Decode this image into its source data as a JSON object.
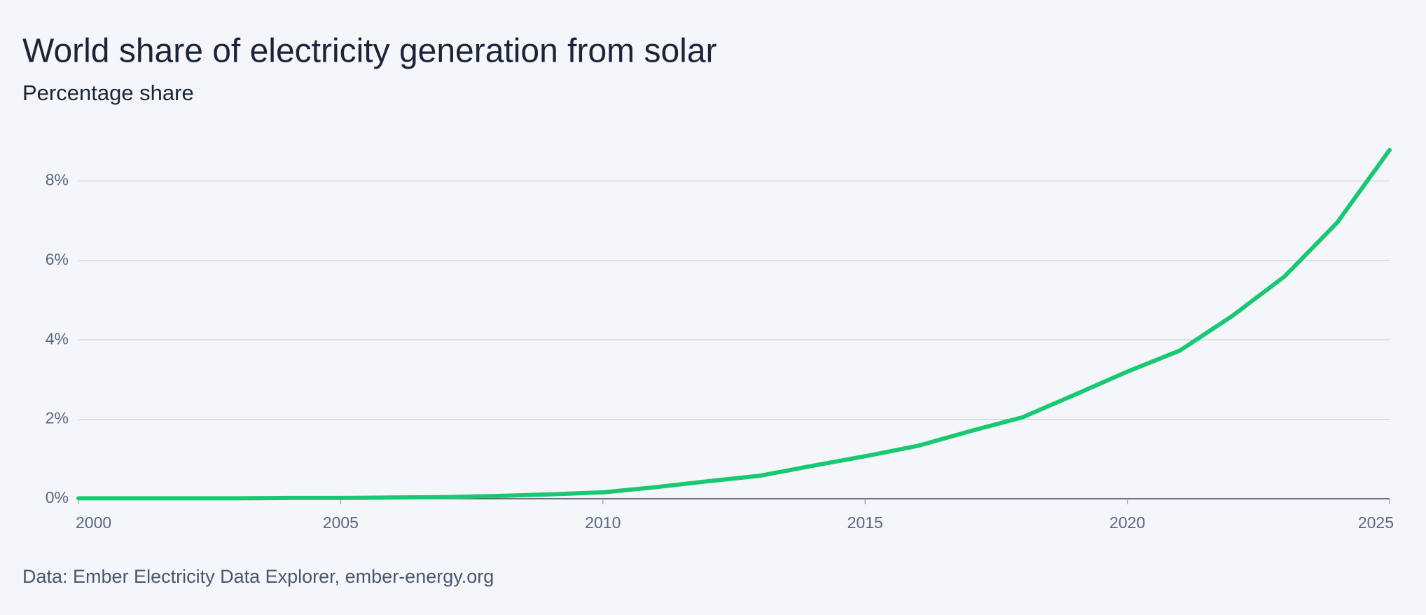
{
  "chart_data": {
    "type": "line",
    "title": "World share of electricity generation from solar",
    "subtitle": "Percentage share",
    "source": "Data: Ember Electricity Data Explorer, ember-energy.org",
    "x": [
      2000,
      2001,
      2002,
      2003,
      2004,
      2005,
      2006,
      2007,
      2008,
      2009,
      2010,
      2011,
      2012,
      2013,
      2014,
      2015,
      2016,
      2017,
      2018,
      2019,
      2020,
      2021,
      2022,
      2023,
      2024,
      2025
    ],
    "series": [
      {
        "color": "#19c872",
        "values": [
          0.01,
          0.01,
          0.01,
          0.01,
          0.02,
          0.02,
          0.03,
          0.04,
          0.07,
          0.11,
          0.16,
          0.29,
          0.44,
          0.58,
          0.83,
          1.07,
          1.33,
          1.7,
          2.05,
          2.62,
          3.2,
          3.73,
          4.6,
          5.6,
          6.95,
          8.78
        ]
      }
    ],
    "xlim": [
      2000,
      2025
    ],
    "xticks": [
      2000,
      2005,
      2010,
      2015,
      2020,
      2025
    ],
    "ylim": [
      0,
      8.8
    ],
    "yticks": [
      {
        "value": 0,
        "label": "0%"
      },
      {
        "value": 2,
        "label": "2%"
      },
      {
        "value": 4,
        "label": "4%"
      },
      {
        "value": 6,
        "label": "6%"
      },
      {
        "value": 8,
        "label": "8%"
      }
    ],
    "grid": true
  }
}
